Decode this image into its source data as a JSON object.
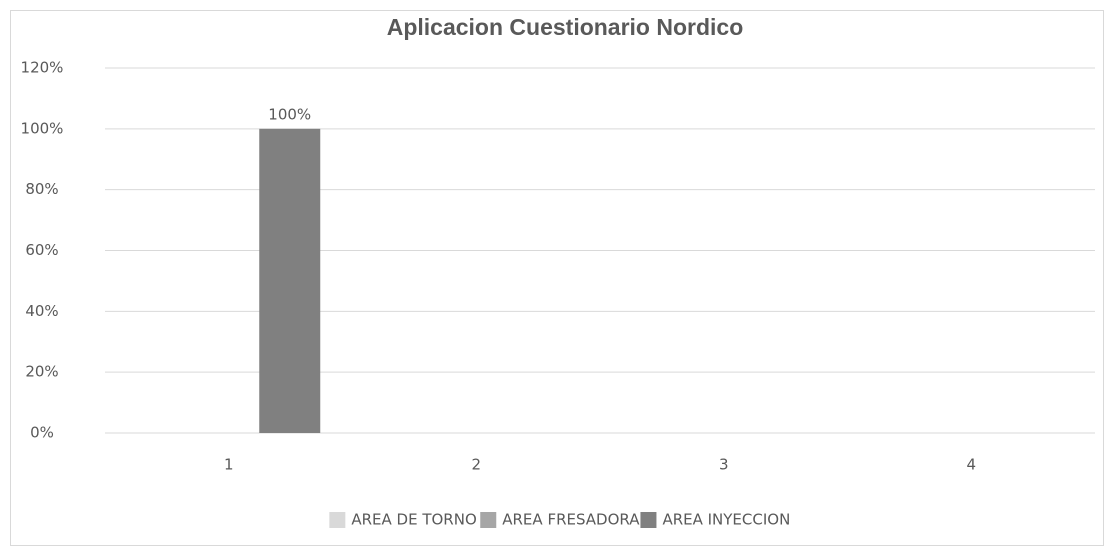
{
  "chart_data": {
    "type": "bar",
    "title": "Aplicacion Cuestionario Nordico",
    "categories": [
      "1",
      "2",
      "3",
      "4"
    ],
    "series": [
      {
        "name": "AREA DE TORNO",
        "color": "#d9d9d9",
        "values": [
          0,
          0,
          0,
          0
        ]
      },
      {
        "name": "AREA FRESADORA",
        "color": "#a6a6a6",
        "values": [
          0,
          0,
          0,
          0
        ]
      },
      {
        "name": "AREA INYECCION",
        "color": "#808080",
        "values": [
          100,
          0,
          0,
          0
        ],
        "value_labels": [
          "100%",
          null,
          null,
          null
        ]
      }
    ],
    "ylim": [
      0,
      120
    ],
    "yticks": [
      {
        "value": 0,
        "label": "0%"
      },
      {
        "value": 20,
        "label": "20%"
      },
      {
        "value": 40,
        "label": "40%"
      },
      {
        "value": 60,
        "label": "60%"
      },
      {
        "value": 80,
        "label": "80%"
      },
      {
        "value": 100,
        "label": "100%"
      },
      {
        "value": 120,
        "label": "120%"
      }
    ],
    "grid": true,
    "legend": "bottom"
  }
}
